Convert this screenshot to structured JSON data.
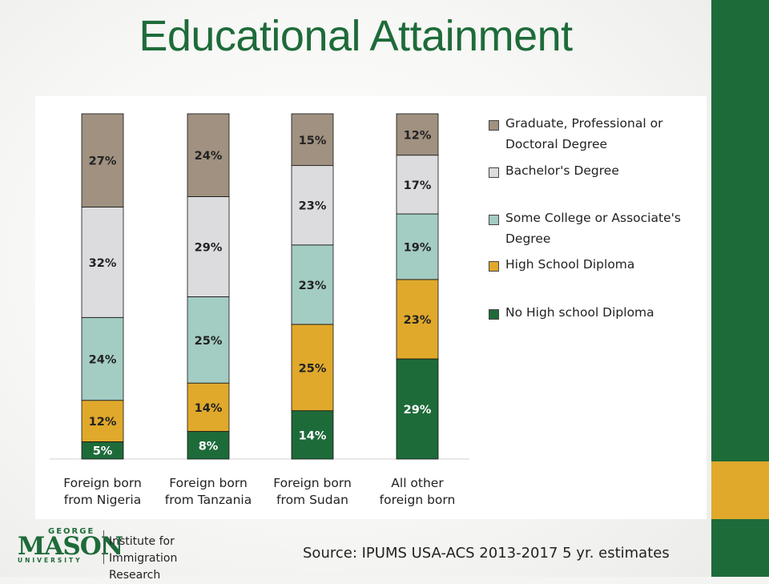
{
  "title": "Educational Attainment",
  "source": "Source: IPUMS USA-ACS 2013-2017 5 yr. estimates",
  "logo": {
    "george": "GEORGE",
    "mason": "MASON",
    "university": "UNIVERSITY",
    "institute_line1": "Institute for",
    "institute_line2": "Immigration Research"
  },
  "colors": {
    "brand_green": "#1e6b3a",
    "brand_gold": "#e0a92c"
  },
  "chart_data": {
    "type": "bar",
    "stacked": true,
    "title": "",
    "xlabel": "",
    "ylabel": "",
    "ylim": [
      0,
      100
    ],
    "grid": false,
    "legend_position": "right",
    "categories": [
      [
        "Foreign born",
        "from Nigeria"
      ],
      [
        "Foreign born",
        "from Tanzania"
      ],
      [
        "Foreign born",
        "from Sudan"
      ],
      [
        "All other",
        "foreign born"
      ]
    ],
    "series": [
      {
        "name": "No High school Diploma",
        "color": "#1e6b3a",
        "label_color": "#ffffff",
        "values": [
          5,
          8,
          14,
          29
        ]
      },
      {
        "name": "High School Diploma",
        "color": "#e0a92c",
        "label_color": "#222222",
        "values": [
          12,
          14,
          25,
          23
        ]
      },
      {
        "name": "Some College or Associate's Degree",
        "color": "#a3ccc3",
        "label_color": "#222222",
        "values": [
          24,
          25,
          23,
          19
        ]
      },
      {
        "name": "Bachelor's Degree",
        "color": "#dcdcde",
        "label_color": "#222222",
        "values": [
          32,
          29,
          23,
          17
        ]
      },
      {
        "name": "Graduate, Professional or Doctoral Degree",
        "color": "#a09180",
        "label_color": "#222222",
        "values": [
          27,
          24,
          15,
          12
        ]
      }
    ],
    "legend_order": [
      4,
      3,
      2,
      1,
      0
    ]
  }
}
